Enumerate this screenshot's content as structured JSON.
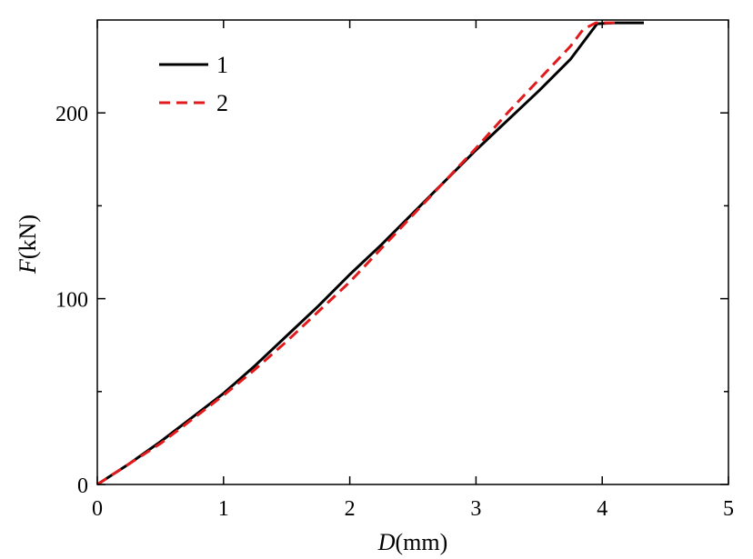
{
  "chart_data": {
    "type": "line",
    "title": "",
    "xlabel": {
      "symbol": "D",
      "unit": "(mm)"
    },
    "ylabel": {
      "symbol": "F",
      "unit": "(kN)"
    },
    "xlim": [
      0,
      5
    ],
    "ylim": [
      0,
      250
    ],
    "xticks": [
      0,
      1,
      2,
      3,
      4,
      5
    ],
    "yticks": [
      0,
      100,
      200
    ],
    "y_minor_ticks": [
      50,
      150
    ],
    "grid": false,
    "legend": "top-left",
    "series": [
      {
        "name": "1",
        "color": "#000000",
        "dash": "solid",
        "points": [
          [
            0,
            0
          ],
          [
            0.25,
            11
          ],
          [
            0.5,
            23
          ],
          [
            0.75,
            36
          ],
          [
            1.0,
            49
          ],
          [
            1.25,
            64
          ],
          [
            1.5,
            80
          ],
          [
            1.75,
            96
          ],
          [
            2.0,
            113
          ],
          [
            2.25,
            129
          ],
          [
            2.5,
            146
          ],
          [
            2.75,
            163
          ],
          [
            3.0,
            180
          ],
          [
            3.25,
            196
          ],
          [
            3.5,
            212
          ],
          [
            3.75,
            229
          ],
          [
            3.96,
            248
          ],
          [
            4.1,
            248.5
          ],
          [
            4.33,
            248.5
          ]
        ]
      },
      {
        "name": "2",
        "color": "#e31a1c",
        "dash": "dashed",
        "points": [
          [
            0,
            0
          ],
          [
            0.25,
            11
          ],
          [
            0.5,
            22
          ],
          [
            0.75,
            35
          ],
          [
            1.0,
            48
          ],
          [
            1.25,
            62
          ],
          [
            1.5,
            77
          ],
          [
            1.75,
            93
          ],
          [
            2.0,
            109
          ],
          [
            2.25,
            127
          ],
          [
            2.5,
            145
          ],
          [
            2.75,
            163
          ],
          [
            3.0,
            181
          ],
          [
            3.25,
            200
          ],
          [
            3.5,
            218
          ],
          [
            3.75,
            236
          ],
          [
            3.85,
            245
          ],
          [
            3.95,
            248.5
          ],
          [
            4.1,
            248.5
          ]
        ]
      }
    ]
  }
}
